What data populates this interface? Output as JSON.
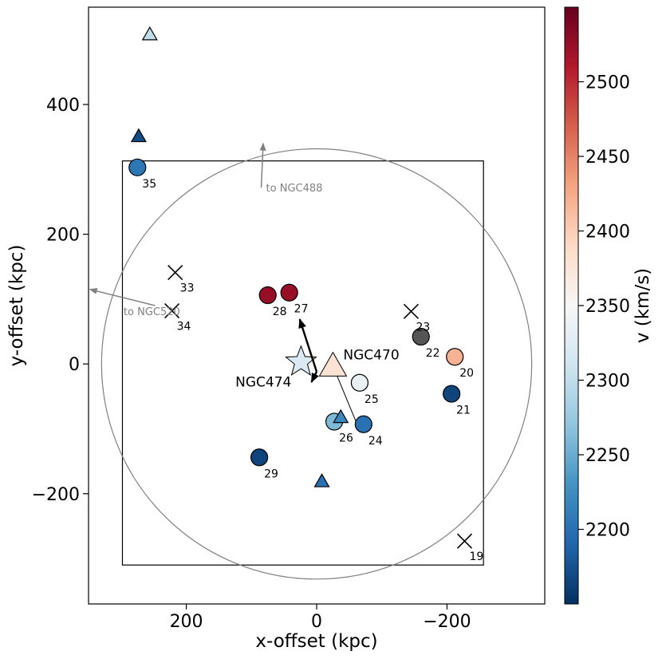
{
  "chart_data": {
    "type": "scatter",
    "title": "",
    "xlabel": "x-offset (kpc)",
    "ylabel": "y-offset (kpc)",
    "xlim": [
      350,
      -350
    ],
    "ylim": [
      -370,
      550
    ],
    "x_ticks": [
      200,
      0,
      -200
    ],
    "x_tick_labels": [
      "200",
      "0",
      "−200"
    ],
    "y_ticks": [
      400,
      200,
      0,
      -200
    ],
    "y_tick_labels": [
      "400",
      "200",
      "0",
      "−200"
    ],
    "grid": false,
    "colorbar": {
      "label": "v (km/s)",
      "vmin": 2150,
      "vmax": 2550,
      "ticks": [
        2200,
        2250,
        2300,
        2350,
        2400,
        2450,
        2500
      ],
      "tick_labels": [
        "2200",
        "2250",
        "2300",
        "2350",
        "2400",
        "2450",
        "2500"
      ],
      "colormap": "RdBu_r"
    },
    "region": {
      "box": {
        "x": [
          298,
          -256
        ],
        "y": [
          -310,
          313
        ]
      },
      "circle": {
        "center": [
          0,
          0
        ],
        "radius": 330
      },
      "box_color": "#000000",
      "circle_color": "#808080"
    },
    "circles": [
      {
        "label": "20",
        "x": -212,
        "y": 11,
        "v": 2420
      },
      {
        "label": "21",
        "x": -207,
        "y": -46,
        "v": 2165
      },
      {
        "label": "22",
        "x": -160,
        "y": 42,
        "v": null,
        "color": "#555555"
      },
      {
        "label": "24",
        "x": -72,
        "y": -93,
        "v": 2200
      },
      {
        "label": "25",
        "x": -66,
        "y": -29,
        "v": 2335
      },
      {
        "label": "26",
        "x": -27,
        "y": -89,
        "v": 2260
      },
      {
        "label": "27",
        "x": 42,
        "y": 110,
        "v": 2525
      },
      {
        "label": "28",
        "x": 75,
        "y": 106,
        "v": 2525
      },
      {
        "label": "29",
        "x": 88,
        "y": -144,
        "v": 2165
      },
      {
        "label": "35",
        "x": 275,
        "y": 303,
        "v": 2205
      }
    ],
    "triangles": [
      {
        "label": "",
        "x": 256,
        "y": 508,
        "v": 2300
      },
      {
        "label": "",
        "x": 273,
        "y": 351,
        "v": 2170
      },
      {
        "label": "",
        "x": -37,
        "y": -82,
        "v": 2220
      },
      {
        "label": "",
        "x": -8,
        "y": -181,
        "v": 2200
      }
    ],
    "crosses": [
      {
        "label": "19",
        "x": -227,
        "y": -273
      },
      {
        "label": "23",
        "x": -145,
        "y": 81
      },
      {
        "label": "33",
        "x": 217,
        "y": 141
      },
      {
        "label": "34",
        "x": 222,
        "y": 82
      }
    ],
    "galaxies": [
      {
        "name": "NGC474",
        "marker": "star",
        "x": 24,
        "y": 3,
        "v": 2320
      },
      {
        "name": "NGC470",
        "marker": "triangle",
        "x": -25,
        "y": -3,
        "v": 2380
      }
    ],
    "arrows": [
      {
        "text": "to NGC488",
        "tail": [
          85,
          272
        ],
        "head": [
          82,
          340
        ]
      },
      {
        "text": "to NGC520",
        "tail": [
          248,
          90
        ],
        "head": [
          348,
          115
        ]
      }
    ],
    "connector": {
      "from": [
        -25,
        -3
      ],
      "to": [
        -60,
        -88
      ]
    },
    "motion_arrow": {
      "from": [
        0,
        -12
      ],
      "to": [
        26,
        69
      ],
      "from2": [
        0,
        -12
      ],
      "to2": [
        8,
        -28
      ]
    }
  }
}
